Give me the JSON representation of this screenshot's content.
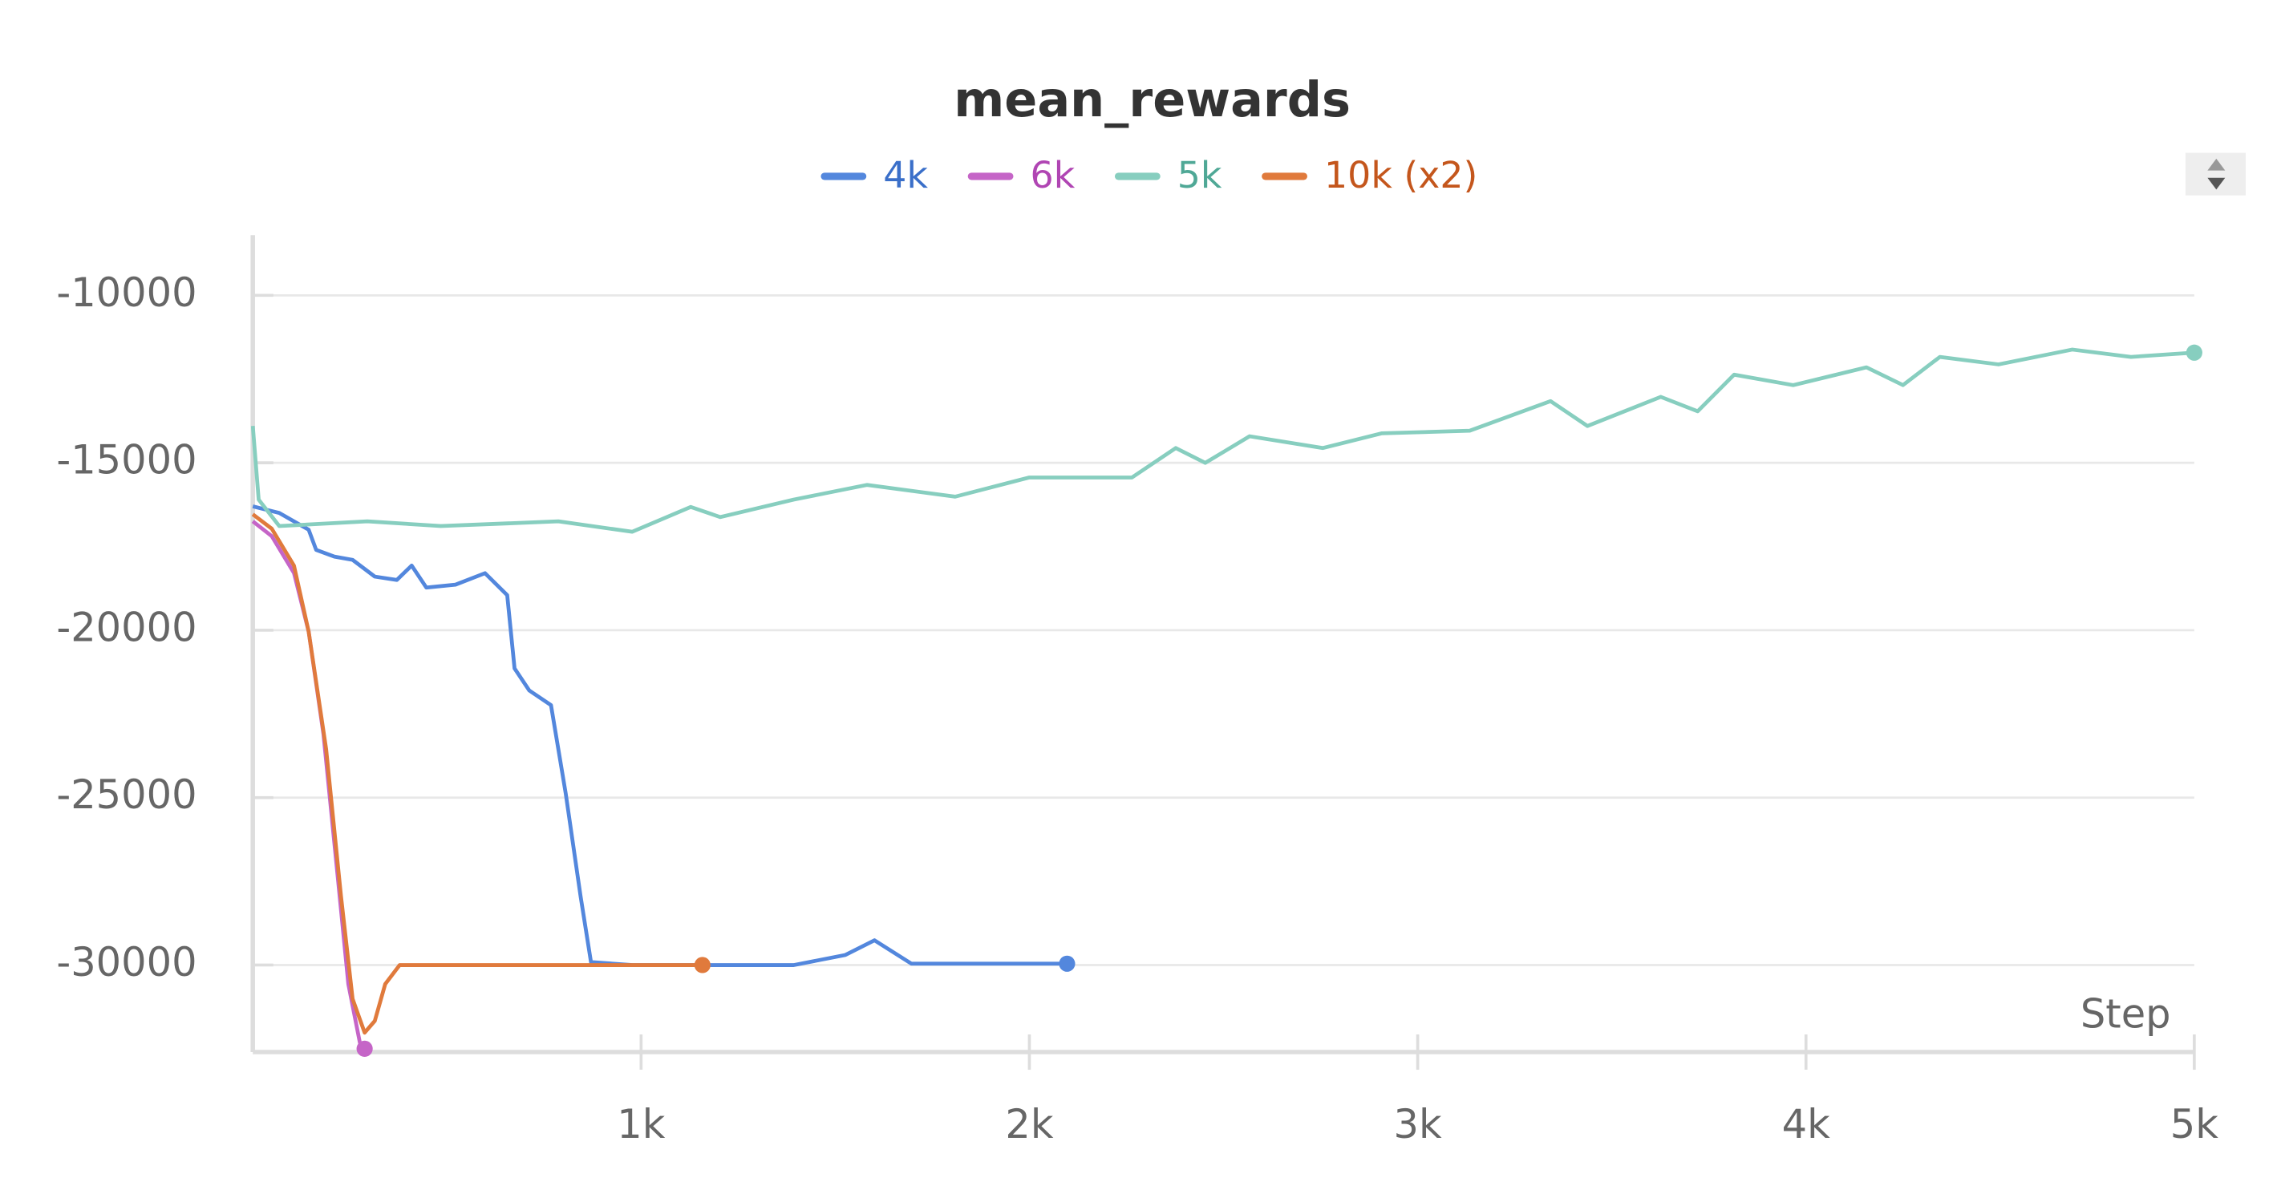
{
  "chart_data": {
    "type": "line",
    "title": "mean_rewards",
    "x_label": "Step",
    "xlim": [
      0,
      5000
    ],
    "xticks": [
      {
        "value": 1000,
        "label": "1k"
      },
      {
        "value": 2000,
        "label": "2k"
      },
      {
        "value": 3000,
        "label": "3k"
      },
      {
        "value": 4000,
        "label": "4k"
      },
      {
        "value": 5000,
        "label": "5k"
      }
    ],
    "ylim": [
      -32600,
      -8200
    ],
    "yticks": [
      -10000,
      -15000,
      -20000,
      -25000,
      -30000
    ],
    "grid": true,
    "legend": "top",
    "end_markers": true,
    "series": [
      {
        "name": "4k",
        "color": "#5387dd",
        "text_color": "#3a6fc9",
        "x": [
          0,
          68,
          144,
          163,
          210,
          257,
          314,
          371,
          409,
          447,
          522,
          598,
          655,
          674,
          712,
          768,
          806,
          844,
          871,
          977,
          1393,
          1526,
          1601,
          1696,
          2097
        ],
        "values": [
          -16300,
          -16500,
          -17000,
          -17600,
          -17800,
          -17900,
          -18400,
          -18500,
          -18070,
          -18730,
          -18640,
          -18300,
          -18950,
          -21140,
          -21800,
          -22240,
          -24870,
          -27940,
          -29910,
          -30000,
          -30000,
          -29700,
          -29260,
          -29960,
          -29960
        ]
      },
      {
        "name": "6k",
        "color": "#c565c7",
        "text_color": "#b045b3",
        "x": [
          0,
          49,
          106,
          144,
          182,
          220,
          246,
          276,
          288
        ],
        "values": [
          -16750,
          -17190,
          -18290,
          -20040,
          -23110,
          -27500,
          -30570,
          -32330,
          -32500
        ]
      },
      {
        "name": "5k",
        "color": "#87cebf",
        "text_color": "#4fa896",
        "x": [
          0,
          15,
          68,
          295,
          484,
          787,
          977,
          1128,
          1204,
          1393,
          1582,
          1809,
          1999,
          2264,
          2377,
          2453,
          2567,
          2756,
          2907,
          3134,
          3342,
          3437,
          3626,
          3721,
          3815,
          3967,
          4156,
          4250,
          4345,
          4496,
          4686,
          4837,
          5000
        ],
        "values": [
          -13900,
          -16100,
          -16890,
          -16750,
          -16890,
          -16750,
          -17060,
          -16320,
          -16620,
          -16100,
          -15660,
          -16010,
          -15440,
          -15440,
          -14560,
          -15000,
          -14210,
          -14560,
          -14120,
          -14040,
          -13160,
          -13900,
          -13030,
          -13460,
          -12370,
          -12680,
          -12150,
          -12680,
          -11840,
          -12060,
          -11620,
          -11840,
          -11710
        ]
      },
      {
        "name": "10k (x2)",
        "color": "#e07a3c",
        "text_color": "#c4561c",
        "x": [
          0,
          49,
          106,
          144,
          189,
          227,
          257,
          288,
          314,
          341,
          378,
          1158
        ],
        "values": [
          -16540,
          -16970,
          -18070,
          -20040,
          -23550,
          -27940,
          -31010,
          -32020,
          -31670,
          -30570,
          -30000,
          -30000
        ]
      }
    ]
  }
}
